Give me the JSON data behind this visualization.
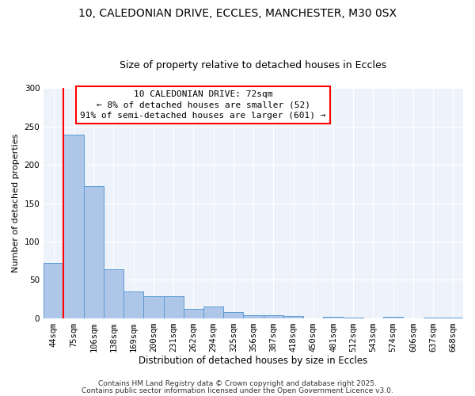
{
  "title1": "10, CALEDONIAN DRIVE, ECCLES, MANCHESTER, M30 0SX",
  "title2": "Size of property relative to detached houses in Eccles",
  "xlabel": "Distribution of detached houses by size in Eccles",
  "ylabel": "Number of detached properties",
  "categories": [
    "44sqm",
    "75sqm",
    "106sqm",
    "138sqm",
    "169sqm",
    "200sqm",
    "231sqm",
    "262sqm",
    "294sqm",
    "325sqm",
    "356sqm",
    "387sqm",
    "418sqm",
    "450sqm",
    "481sqm",
    "512sqm",
    "543sqm",
    "574sqm",
    "606sqm",
    "637sqm",
    "668sqm"
  ],
  "values": [
    72,
    240,
    172,
    64,
    35,
    29,
    29,
    12,
    15,
    8,
    4,
    4,
    3,
    0,
    2,
    1,
    0,
    2,
    0,
    1,
    1
  ],
  "bar_color": "#aec6e8",
  "bar_edge_color": "#5b9bd5",
  "bar_width": 1.0,
  "annotation_text": "10 CALEDONIAN DRIVE: 72sqm\n← 8% of detached houses are smaller (52)\n91% of semi-detached houses are larger (601) →",
  "annotation_box_color": "white",
  "annotation_box_edge_color": "red",
  "vline_color": "red",
  "ylim": [
    0,
    300
  ],
  "yticks": [
    0,
    50,
    100,
    150,
    200,
    250,
    300
  ],
  "bg_color": "#eef3fb",
  "footer1": "Contains HM Land Registry data © Crown copyright and database right 2025.",
  "footer2": "Contains public sector information licensed under the Open Government Licence v3.0.",
  "title1_fontsize": 10,
  "title2_fontsize": 9,
  "xlabel_fontsize": 8.5,
  "ylabel_fontsize": 8,
  "tick_fontsize": 7.5,
  "annotation_fontsize": 8,
  "footer_fontsize": 6.5
}
